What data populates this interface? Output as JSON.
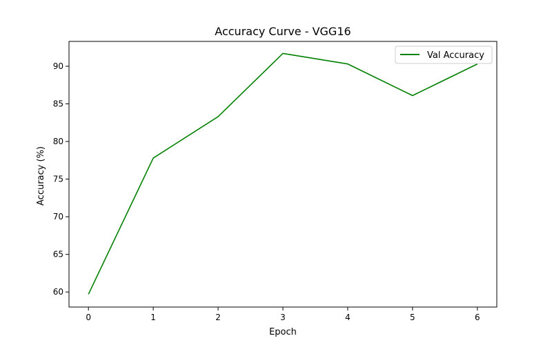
{
  "chart_data": {
    "type": "line",
    "title": "Accuracy Curve - VGG16",
    "xlabel": "Epoch",
    "ylabel": "Accuracy (%)",
    "x": [
      0,
      1,
      2,
      3,
      4,
      5,
      6
    ],
    "series": [
      {
        "name": "Val Accuracy",
        "color": "#008000",
        "values": [
          59.7,
          77.8,
          83.3,
          91.7,
          90.3,
          86.1,
          90.3
        ]
      }
    ],
    "xlim": [
      -0.3,
      6.3
    ],
    "ylim": [
      58.0,
      93.3
    ],
    "xticks": [
      0,
      1,
      2,
      3,
      4,
      5,
      6
    ],
    "yticks": [
      60,
      65,
      70,
      75,
      80,
      85,
      90
    ],
    "grid": false,
    "legend_position": "upper right"
  }
}
